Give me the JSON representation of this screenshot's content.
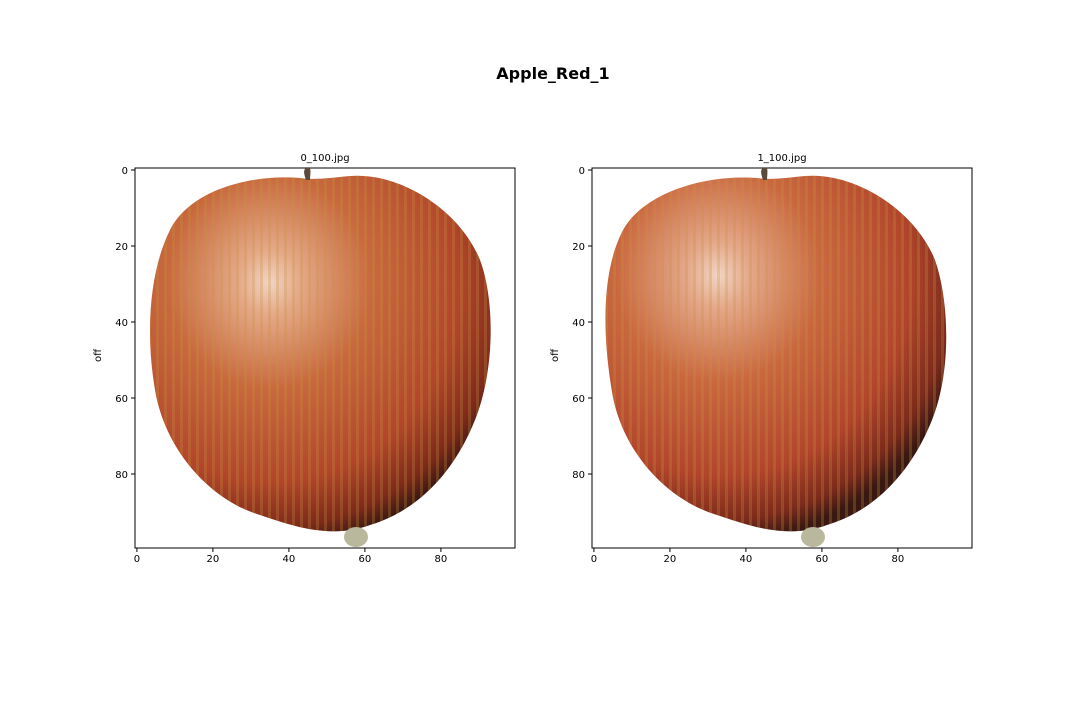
{
  "figure": {
    "suptitle": "Apple_Red_1",
    "panels": [
      {
        "title": "0_100.jpg",
        "ylabel": "off",
        "xticks": [
          0,
          20,
          40,
          60,
          80
        ],
        "yticks": [
          0,
          20,
          40,
          60,
          80
        ],
        "xlim": [
          0,
          100
        ],
        "ylim": [
          0,
          100
        ]
      },
      {
        "title": "1_100.jpg",
        "ylabel": "off",
        "xticks": [
          0,
          20,
          40,
          60,
          80
        ],
        "yticks": [
          0,
          20,
          40,
          60,
          80
        ],
        "xlim": [
          0,
          100
        ],
        "ylim": [
          0,
          100
        ]
      }
    ]
  },
  "colors": {
    "apple_light": "#e8b894",
    "apple_mid": "#c8653f",
    "apple_dark": "#8a2a1c",
    "apple_shadow": "#3a1812",
    "stem": "#5a4a3a",
    "axis": "#000000"
  }
}
